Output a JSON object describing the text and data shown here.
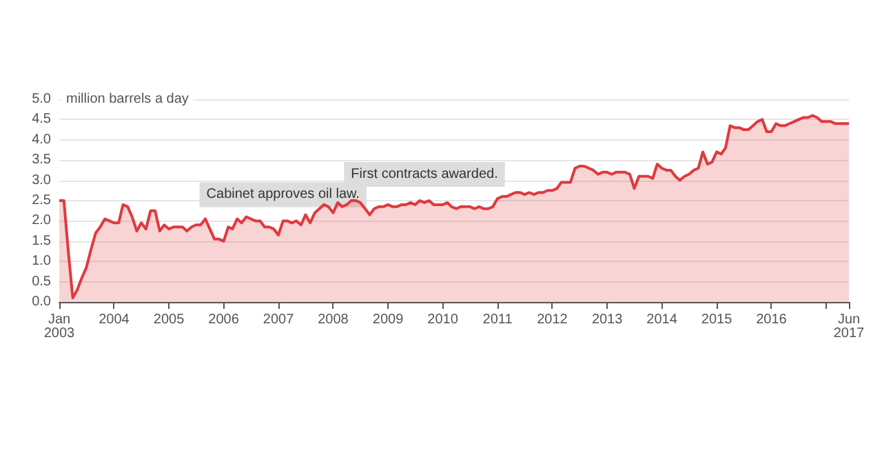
{
  "chart_data": {
    "type": "area",
    "ylabel": "million barrels a day",
    "x": [
      "2003-01",
      "2003-02",
      "2003-03",
      "2003-04",
      "2003-05",
      "2003-06",
      "2003-07",
      "2003-08",
      "2003-09",
      "2003-10",
      "2003-11",
      "2003-12",
      "2004-01",
      "2004-02",
      "2004-03",
      "2004-04",
      "2004-05",
      "2004-06",
      "2004-07",
      "2004-08",
      "2004-09",
      "2004-10",
      "2004-11",
      "2004-12",
      "2005-01",
      "2005-02",
      "2005-03",
      "2005-04",
      "2005-05",
      "2005-06",
      "2005-07",
      "2005-08",
      "2005-09",
      "2005-10",
      "2005-11",
      "2005-12",
      "2006-01",
      "2006-02",
      "2006-03",
      "2006-04",
      "2006-05",
      "2006-06",
      "2006-07",
      "2006-08",
      "2006-09",
      "2006-10",
      "2006-11",
      "2006-12",
      "2007-01",
      "2007-02",
      "2007-03",
      "2007-04",
      "2007-05",
      "2007-06",
      "2007-07",
      "2007-08",
      "2007-09",
      "2007-10",
      "2007-11",
      "2007-12",
      "2008-01",
      "2008-02",
      "2008-03",
      "2008-04",
      "2008-05",
      "2008-06",
      "2008-07",
      "2008-08",
      "2008-09",
      "2008-10",
      "2008-11",
      "2008-12",
      "2009-01",
      "2009-02",
      "2009-03",
      "2009-04",
      "2009-05",
      "2009-06",
      "2009-07",
      "2009-08",
      "2009-09",
      "2009-10",
      "2009-11",
      "2009-12",
      "2010-01",
      "2010-02",
      "2010-03",
      "2010-04",
      "2010-05",
      "2010-06",
      "2010-07",
      "2010-08",
      "2010-09",
      "2010-10",
      "2010-11",
      "2010-12",
      "2011-01",
      "2011-02",
      "2011-03",
      "2011-04",
      "2011-05",
      "2011-06",
      "2011-07",
      "2011-08",
      "2011-09",
      "2011-10",
      "2011-11",
      "2011-12",
      "2012-01",
      "2012-02",
      "2012-03",
      "2012-04",
      "2012-05",
      "2012-06",
      "2012-07",
      "2012-08",
      "2012-09",
      "2012-10",
      "2012-11",
      "2012-12",
      "2013-01",
      "2013-02",
      "2013-03",
      "2013-04",
      "2013-05",
      "2013-06",
      "2013-07",
      "2013-08",
      "2013-09",
      "2013-10",
      "2013-11",
      "2013-12",
      "2014-01",
      "2014-02",
      "2014-03",
      "2014-04",
      "2014-05",
      "2014-06",
      "2014-07",
      "2014-08",
      "2014-09",
      "2014-10",
      "2014-11",
      "2014-12",
      "2015-01",
      "2015-02",
      "2015-03",
      "2015-04",
      "2015-05",
      "2015-06",
      "2015-07",
      "2015-08",
      "2015-09",
      "2015-10",
      "2015-11",
      "2015-12",
      "2016-01",
      "2016-02",
      "2016-03",
      "2016-04",
      "2016-05",
      "2016-06",
      "2016-07",
      "2016-08",
      "2016-09",
      "2016-10",
      "2016-11",
      "2016-12",
      "2017-01",
      "2017-02",
      "2017-03",
      "2017-04",
      "2017-05",
      "2017-06"
    ],
    "series": [
      {
        "color": "#e0393e",
        "values": [
          2.5,
          2.5,
          1.3,
          0.1,
          0.3,
          0.6,
          0.85,
          1.3,
          1.7,
          1.85,
          2.05,
          2.0,
          1.95,
          1.95,
          2.4,
          2.35,
          2.1,
          1.75,
          1.95,
          1.8,
          2.25,
          2.25,
          1.75,
          1.9,
          1.8,
          1.85,
          1.85,
          1.85,
          1.75,
          1.85,
          1.9,
          1.9,
          2.05,
          1.8,
          1.55,
          1.55,
          1.5,
          1.85,
          1.8,
          2.05,
          1.95,
          2.1,
          2.05,
          2.0,
          2.0,
          1.85,
          1.85,
          1.8,
          1.65,
          2.0,
          2.0,
          1.95,
          2.0,
          1.9,
          2.15,
          1.95,
          2.2,
          2.3,
          2.4,
          2.35,
          2.2,
          2.45,
          2.35,
          2.4,
          2.5,
          2.5,
          2.45,
          2.3,
          2.15,
          2.3,
          2.35,
          2.35,
          2.4,
          2.35,
          2.35,
          2.4,
          2.4,
          2.45,
          2.4,
          2.5,
          2.45,
          2.5,
          2.4,
          2.4,
          2.4,
          2.45,
          2.35,
          2.3,
          2.35,
          2.35,
          2.35,
          2.3,
          2.35,
          2.3,
          2.3,
          2.35,
          2.55,
          2.6,
          2.6,
          2.65,
          2.7,
          2.7,
          2.65,
          2.7,
          2.65,
          2.7,
          2.7,
          2.75,
          2.75,
          2.8,
          2.95,
          2.95,
          2.95,
          3.3,
          3.35,
          3.35,
          3.3,
          3.25,
          3.15,
          3.2,
          3.2,
          3.15,
          3.2,
          3.2,
          3.2,
          3.15,
          2.8,
          3.1,
          3.1,
          3.1,
          3.05,
          3.4,
          3.3,
          3.25,
          3.25,
          3.1,
          3.0,
          3.1,
          3.15,
          3.25,
          3.3,
          3.7,
          3.4,
          3.45,
          3.7,
          3.65,
          3.8,
          4.35,
          4.3,
          4.3,
          4.25,
          4.25,
          4.35,
          4.45,
          4.5,
          4.2,
          4.2,
          4.4,
          4.35,
          4.35,
          4.4,
          4.45,
          4.5,
          4.55,
          4.55,
          4.6,
          4.55,
          4.45,
          4.45,
          4.45,
          4.4,
          4.4,
          4.4,
          4.4
        ]
      }
    ],
    "xlim": [
      "2003-01",
      "2017-06"
    ],
    "xticks": [
      {
        "value": "2003-01",
        "label": "Jan\n2003"
      },
      {
        "value": "2004-01",
        "label": "2004"
      },
      {
        "value": "2005-01",
        "label": "2005"
      },
      {
        "value": "2006-01",
        "label": "2006"
      },
      {
        "value": "2007-01",
        "label": "2007"
      },
      {
        "value": "2008-01",
        "label": "2008"
      },
      {
        "value": "2009-01",
        "label": "2009"
      },
      {
        "value": "2010-01",
        "label": "2010"
      },
      {
        "value": "2011-01",
        "label": "2011"
      },
      {
        "value": "2012-01",
        "label": "2012"
      },
      {
        "value": "2013-01",
        "label": "2013"
      },
      {
        "value": "2014-01",
        "label": "2014"
      },
      {
        "value": "2015-01",
        "label": "2015"
      },
      {
        "value": "2016-01",
        "label": "2016"
      },
      {
        "value": "2017-01",
        "label": null
      },
      {
        "value": "2017-06",
        "label": "Jun\n2017"
      }
    ],
    "ylim": [
      0,
      5
    ],
    "yticks": [
      {
        "value": 0,
        "label": "0.0"
      },
      {
        "value": 0.5,
        "label": "0.5"
      },
      {
        "value": 1,
        "label": "1.0"
      },
      {
        "value": 1.5,
        "label": "1.5"
      },
      {
        "value": 2,
        "label": "2.0"
      },
      {
        "value": 2.5,
        "label": "2.5"
      },
      {
        "value": 3,
        "label": "3.0"
      },
      {
        "value": 3.5,
        "label": "3.5"
      },
      {
        "value": 4,
        "label": "4.0"
      },
      {
        "value": 4.5,
        "label": "4.5"
      },
      {
        "value": 5,
        "label": "5.0"
      }
    ],
    "grid": "y",
    "annotations": [
      {
        "text": "Cabinet approves oil law.",
        "x": "2007-02",
        "y": 2.0
      },
      {
        "text": "First contracts awarded.",
        "x": "2009-09",
        "y": 2.5
      }
    ]
  }
}
